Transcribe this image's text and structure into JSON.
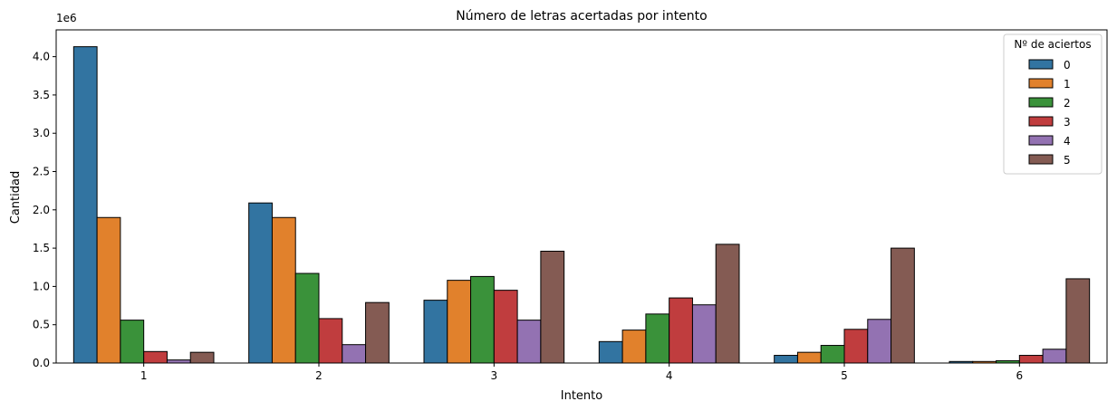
{
  "chart_data": {
    "type": "bar",
    "title": "Número de letras acertadas por intento",
    "xlabel": "Intento",
    "ylabel": "Cantidad",
    "y_offset_label": "1e6",
    "categories": [
      "1",
      "2",
      "3",
      "4",
      "5",
      "6"
    ],
    "ylim": [
      0,
      4.35
    ],
    "y_ticks": [
      "0.0",
      "0.5",
      "1.0",
      "1.5",
      "2.0",
      "2.5",
      "3.0",
      "3.5",
      "4.0"
    ],
    "legend": {
      "title": "Nº de aciertos",
      "placement": "top-right"
    },
    "grid": false,
    "series": [
      {
        "name": "0",
        "color": "#3274a1",
        "values": [
          4.13,
          2.09,
          0.82,
          0.28,
          0.1,
          0.02
        ]
      },
      {
        "name": "1",
        "color": "#e1812c",
        "values": [
          1.9,
          1.9,
          1.08,
          0.43,
          0.14,
          0.02
        ]
      },
      {
        "name": "2",
        "color": "#3a923a",
        "values": [
          0.56,
          1.17,
          1.13,
          0.64,
          0.23,
          0.03
        ]
      },
      {
        "name": "3",
        "color": "#c03d3e",
        "values": [
          0.15,
          0.58,
          0.95,
          0.85,
          0.44,
          0.1
        ]
      },
      {
        "name": "4",
        "color": "#9372b2",
        "values": [
          0.04,
          0.24,
          0.56,
          0.76,
          0.57,
          0.18
        ]
      },
      {
        "name": "5",
        "color": "#845b53",
        "values": [
          0.14,
          0.79,
          1.46,
          1.55,
          1.5,
          1.1
        ]
      }
    ]
  }
}
